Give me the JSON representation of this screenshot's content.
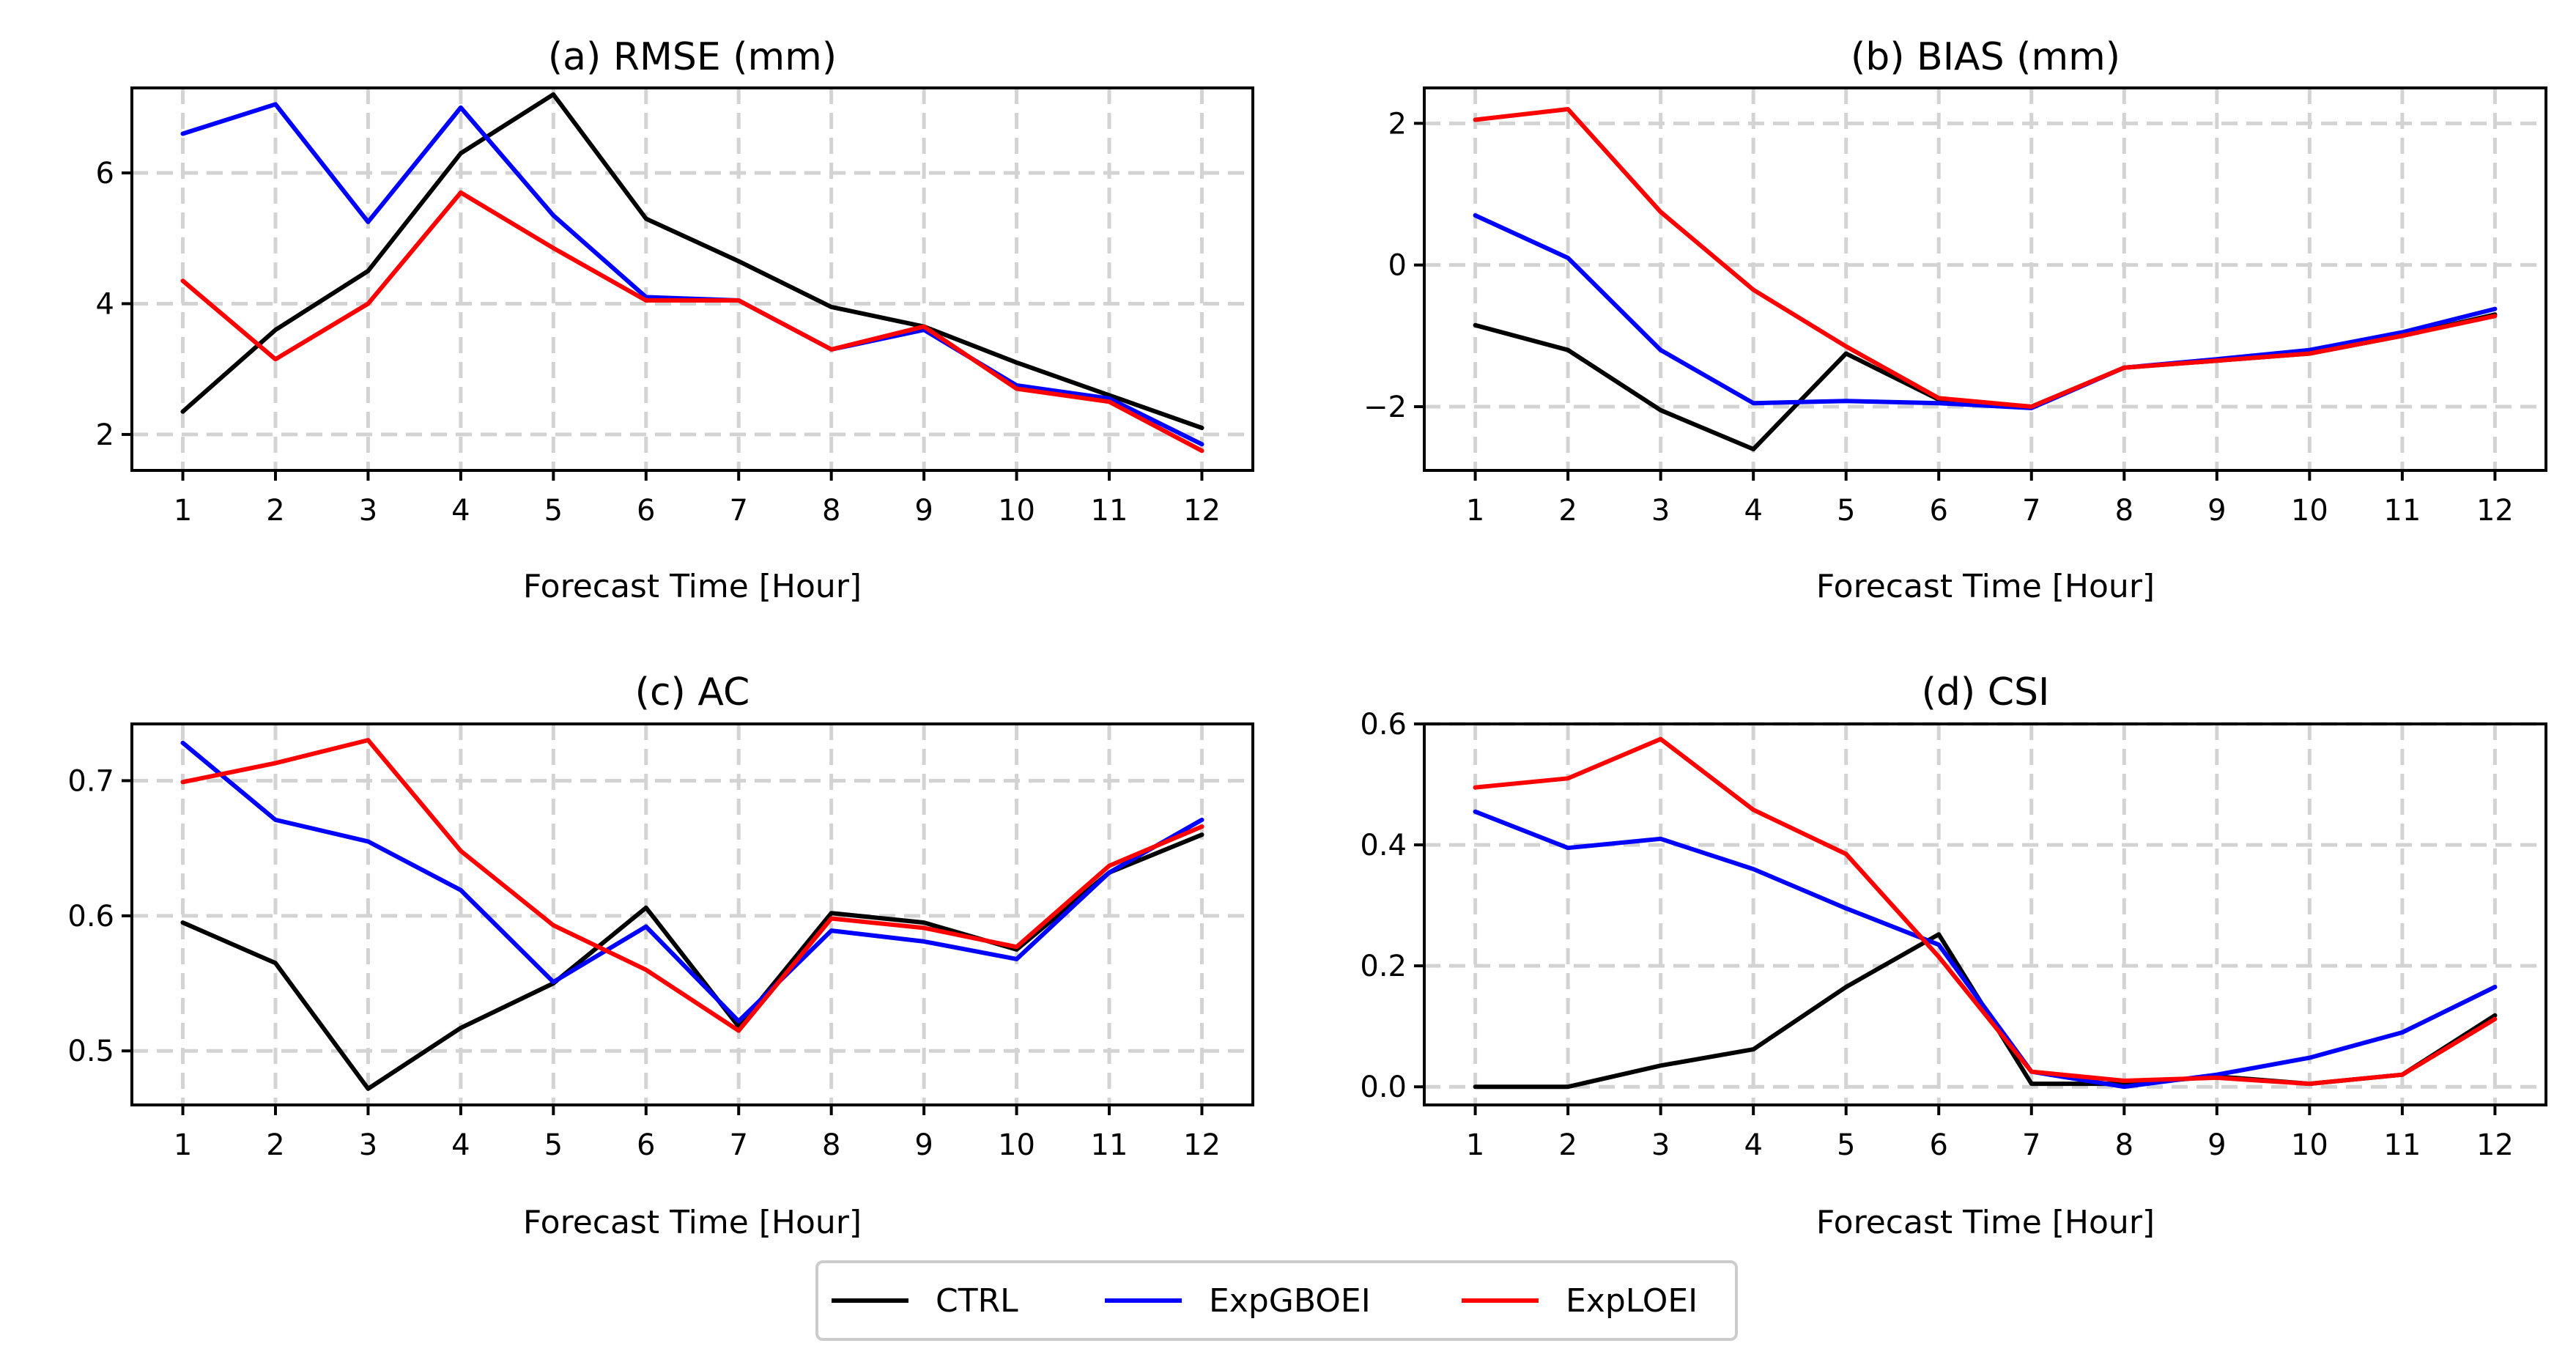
{
  "chart_data": [
    {
      "type": "line",
      "title": "(a) RMSE (mm)",
      "xlabel": "Forecast Time [Hour]",
      "ylabel": "",
      "x": [
        1,
        2,
        3,
        4,
        5,
        6,
        7,
        8,
        9,
        10,
        11,
        12
      ],
      "xticks": [
        1,
        2,
        3,
        4,
        5,
        6,
        7,
        8,
        9,
        10,
        11,
        12
      ],
      "ylim": [
        1.45,
        7.3
      ],
      "yticks": [
        2,
        4,
        6
      ],
      "ytick_labels": [
        "2",
        "4",
        "6"
      ],
      "grid": true,
      "series": [
        {
          "name": "CTRL",
          "color": "#000000",
          "values": [
            2.35,
            3.6,
            4.5,
            6.3,
            7.2,
            5.3,
            4.65,
            3.95,
            3.65,
            3.1,
            2.6,
            2.1
          ]
        },
        {
          "name": "ExpGBOEI",
          "color": "#0000ff",
          "values": [
            6.6,
            7.05,
            5.25,
            7.0,
            5.35,
            4.1,
            4.05,
            3.3,
            3.6,
            2.75,
            2.55,
            1.85
          ]
        },
        {
          "name": "ExpLOEI",
          "color": "#ff0000",
          "values": [
            4.35,
            3.15,
            4.0,
            5.7,
            4.85,
            4.05,
            4.05,
            3.3,
            3.65,
            2.7,
            2.5,
            1.75
          ]
        }
      ]
    },
    {
      "type": "line",
      "title": "(b) BIAS (mm)",
      "xlabel": "Forecast Time [Hour]",
      "ylabel": "",
      "x": [
        1,
        2,
        3,
        4,
        5,
        6,
        7,
        8,
        9,
        10,
        11,
        12
      ],
      "xticks": [
        1,
        2,
        3,
        4,
        5,
        6,
        7,
        8,
        9,
        10,
        11,
        12
      ],
      "ylim": [
        -2.9,
        2.5
      ],
      "yticks": [
        -2,
        0,
        2
      ],
      "ytick_labels": [
        "−2",
        "0",
        "2"
      ],
      "grid": true,
      "series": [
        {
          "name": "CTRL",
          "color": "#000000",
          "values": [
            -0.85,
            -1.2,
            -2.05,
            -2.6,
            -1.25,
            -1.9,
            -2.0,
            -1.45,
            -1.35,
            -1.25,
            -1.0,
            -0.7
          ]
        },
        {
          "name": "ExpGBOEI",
          "color": "#0000ff",
          "values": [
            0.7,
            0.1,
            -1.2,
            -1.95,
            -1.92,
            -1.95,
            -2.02,
            -1.45,
            -1.33,
            -1.2,
            -0.95,
            -0.62
          ]
        },
        {
          "name": "ExpLOEI",
          "color": "#ff0000",
          "values": [
            2.05,
            2.2,
            0.75,
            -0.35,
            -1.15,
            -1.88,
            -2.0,
            -1.45,
            -1.35,
            -1.25,
            -1.0,
            -0.72
          ]
        }
      ]
    },
    {
      "type": "line",
      "title": "(c) AC",
      "xlabel": "Forecast Time [Hour]",
      "ylabel": "",
      "x": [
        1,
        2,
        3,
        4,
        5,
        6,
        7,
        8,
        9,
        10,
        11,
        12
      ],
      "xticks": [
        1,
        2,
        3,
        4,
        5,
        6,
        7,
        8,
        9,
        10,
        11,
        12
      ],
      "ylim": [
        0.46,
        0.742
      ],
      "yticks": [
        0.5,
        0.6,
        0.7
      ],
      "ytick_labels": [
        "0.5",
        "0.6",
        "0.7"
      ],
      "grid": true,
      "series": [
        {
          "name": "CTRL",
          "color": "#000000",
          "values": [
            0.595,
            0.565,
            0.472,
            0.517,
            0.55,
            0.606,
            0.518,
            0.602,
            0.595,
            0.575,
            0.632,
            0.66
          ]
        },
        {
          "name": "ExpGBOEI",
          "color": "#0000ff",
          "values": [
            0.728,
            0.671,
            0.655,
            0.619,
            0.551,
            0.592,
            0.522,
            0.589,
            0.581,
            0.568,
            0.632,
            0.671
          ]
        },
        {
          "name": "ExpLOEI",
          "color": "#ff0000",
          "values": [
            0.699,
            0.713,
            0.73,
            0.648,
            0.593,
            0.56,
            0.515,
            0.598,
            0.591,
            0.577,
            0.637,
            0.666
          ]
        }
      ]
    },
    {
      "type": "line",
      "title": "(d) CSI",
      "xlabel": "Forecast Time [Hour]",
      "ylabel": "",
      "x": [
        1,
        2,
        3,
        4,
        5,
        6,
        7,
        8,
        9,
        10,
        11,
        12
      ],
      "xticks": [
        1,
        2,
        3,
        4,
        5,
        6,
        7,
        8,
        9,
        10,
        11,
        12
      ],
      "ylim": [
        -0.03,
        0.6
      ],
      "yticks": [
        0,
        0.2,
        0.4,
        0.6
      ],
      "ytick_labels": [
        "0.0",
        "0.2",
        "0.4",
        "0.6"
      ],
      "grid": true,
      "series": [
        {
          "name": "CTRL",
          "color": "#000000",
          "values": [
            0.0,
            0.0,
            0.035,
            0.062,
            0.165,
            0.252,
            0.005,
            0.005,
            0.017,
            0.005,
            0.02,
            0.118
          ]
        },
        {
          "name": "ExpGBOEI",
          "color": "#0000ff",
          "values": [
            0.455,
            0.395,
            0.41,
            0.36,
            0.295,
            0.235,
            0.025,
            0.0,
            0.02,
            0.048,
            0.09,
            0.165
          ]
        },
        {
          "name": "ExpLOEI",
          "color": "#ff0000",
          "values": [
            0.495,
            0.51,
            0.575,
            0.458,
            0.385,
            0.215,
            0.025,
            0.01,
            0.015,
            0.005,
            0.02,
            0.112
          ]
        }
      ]
    }
  ],
  "legend": {
    "placement": "bottom-center",
    "entries": [
      {
        "label": "CTRL",
        "color": "#000000"
      },
      {
        "label": "ExpGBOEI",
        "color": "#0000ff"
      },
      {
        "label": "ExpLOEI",
        "color": "#ff0000"
      }
    ]
  }
}
